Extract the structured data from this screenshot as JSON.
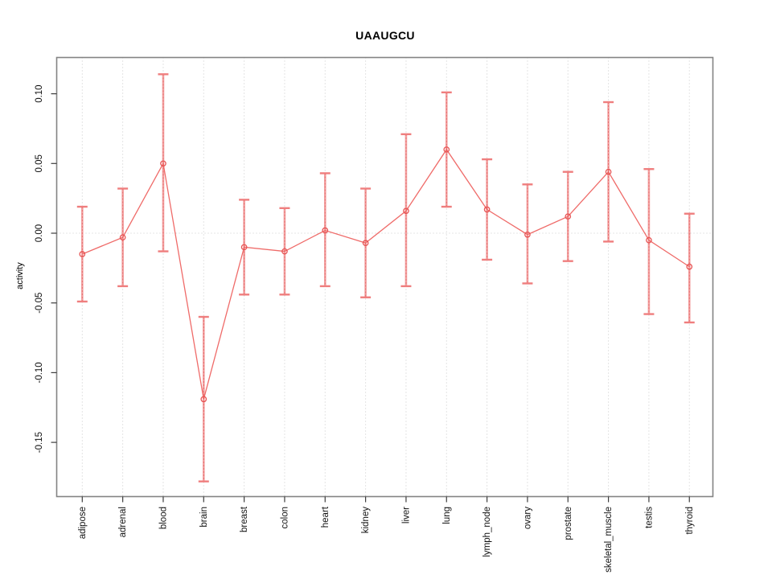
{
  "title": "UAAUGCU",
  "ylabel": "activity",
  "colors": {
    "series_line": "#ee6361",
    "marker_stroke": "#e75454",
    "errorbar_fill": "#f2a0a0",
    "errorbar_dash": "#e46060",
    "cap_color": "#ef7e7e",
    "grid_color": "#c9c9c9",
    "box_color": "#838383",
    "tick_color": "#3d3d3d",
    "label_color": "#111111"
  },
  "chart_data": {
    "type": "line",
    "title": "UAAUGCU",
    "xlabel": "",
    "ylabel": "activity",
    "legend": "none",
    "grid": "vertical dotted gridline at each category; horizontal dotted line at y=0",
    "ylim": [
      -0.19,
      0.126
    ],
    "yticks": [
      0.1,
      0.05,
      0.0,
      -0.05,
      -0.1,
      -0.15
    ],
    "ytick_labels": [
      "0.10",
      "0.05",
      "0.00",
      "-0.05",
      "-0.10",
      "-0.15"
    ],
    "categories": [
      "adipose",
      "adrenal",
      "blood",
      "brain",
      "breast",
      "colon",
      "heart",
      "kidney",
      "liver",
      "lung",
      "lymph_node",
      "ovary",
      "prostate",
      "skeletal_muscle",
      "testis",
      "thyroid"
    ],
    "series": [
      {
        "name": "activity",
        "marker": "open-circle",
        "values": [
          -0.015,
          -0.003,
          0.05,
          -0.119,
          -0.01,
          -0.013,
          0.002,
          -0.007,
          0.016,
          0.06,
          0.017,
          -0.001,
          0.012,
          0.044,
          -0.005,
          -0.024
        ],
        "ci_high": [
          0.019,
          0.032,
          0.114,
          -0.06,
          0.024,
          0.018,
          0.043,
          0.032,
          0.071,
          0.101,
          0.053,
          0.035,
          0.044,
          0.094,
          0.046,
          0.014
        ],
        "ci_low": [
          -0.049,
          -0.038,
          -0.013,
          -0.178,
          -0.044,
          -0.044,
          -0.038,
          -0.046,
          -0.038,
          0.019,
          -0.019,
          -0.036,
          -0.02,
          -0.006,
          -0.058,
          -0.064
        ]
      }
    ]
  }
}
